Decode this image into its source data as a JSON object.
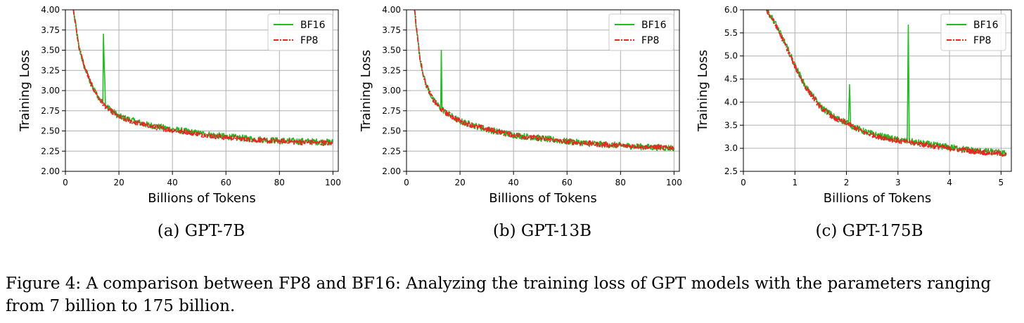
{
  "figure_caption": "Figure 4: A comparison between FP8 and BF16: Analyzing the training loss of GPT models with the parameters ranging from 7 billion to 175 billion.",
  "legend": [
    "BF16",
    "FP8"
  ],
  "colors": {
    "BF16": "#22bb22",
    "FP8": "#ee2222",
    "grid": "#b0b0b0"
  },
  "chart_data": [
    {
      "type": "line",
      "caption": "(a) GPT-7B",
      "xlabel": "Billions of Tokens",
      "ylabel": "Training Loss",
      "xlim": [
        0,
        102
      ],
      "ylim": [
        2.0,
        4.0
      ],
      "xticks": [
        0,
        20,
        40,
        60,
        80,
        100
      ],
      "yticks": [
        2.0,
        2.25,
        2.5,
        2.75,
        3.0,
        3.25,
        3.5,
        3.75,
        4.0
      ],
      "ytick_labels": [
        "2.00",
        "2.25",
        "2.50",
        "2.75",
        "3.00",
        "3.25",
        "3.50",
        "3.75",
        "4.00"
      ],
      "grid": true,
      "legend_position": "top-right",
      "series": [
        {
          "name": "BF16",
          "style": "solid",
          "x": [
            3,
            5,
            7,
            10,
            13,
            14,
            14.2,
            15,
            20,
            30,
            40,
            50,
            60,
            70,
            80,
            90,
            100
          ],
          "y": [
            4.0,
            3.55,
            3.3,
            3.05,
            2.88,
            2.85,
            3.7,
            2.82,
            2.68,
            2.58,
            2.52,
            2.47,
            2.43,
            2.4,
            2.38,
            2.37,
            2.36
          ]
        },
        {
          "name": "FP8",
          "style": "dashdot",
          "x": [
            3,
            5,
            7,
            10,
            13,
            15,
            20,
            30,
            40,
            50,
            60,
            70,
            80,
            90,
            100
          ],
          "y": [
            4.0,
            3.55,
            3.3,
            3.05,
            2.88,
            2.8,
            2.67,
            2.57,
            2.51,
            2.46,
            2.42,
            2.39,
            2.37,
            2.36,
            2.35
          ]
        }
      ]
    },
    {
      "type": "line",
      "caption": "(b) GPT-13B",
      "xlabel": "Billions of Tokens",
      "ylabel": "Training Loss",
      "xlim": [
        0,
        102
      ],
      "ylim": [
        2.0,
        4.0
      ],
      "xticks": [
        0,
        20,
        40,
        60,
        80,
        100
      ],
      "yticks": [
        2.0,
        2.25,
        2.5,
        2.75,
        3.0,
        3.25,
        3.5,
        3.75,
        4.0
      ],
      "ytick_labels": [
        "2.00",
        "2.25",
        "2.50",
        "2.75",
        "3.00",
        "3.25",
        "3.50",
        "3.75",
        "4.00"
      ],
      "grid": true,
      "legend_position": "top-right",
      "series": [
        {
          "name": "BF16",
          "style": "solid",
          "x": [
            3,
            5,
            7,
            10,
            12.8,
            13,
            13.3,
            15,
            20,
            30,
            40,
            50,
            60,
            70,
            80,
            90,
            100
          ],
          "y": [
            4.0,
            3.4,
            3.1,
            2.88,
            2.78,
            3.5,
            2.77,
            2.72,
            2.62,
            2.52,
            2.45,
            2.41,
            2.37,
            2.34,
            2.32,
            2.3,
            2.29
          ]
        },
        {
          "name": "FP8",
          "style": "dashdot",
          "x": [
            3,
            5,
            7,
            10,
            13,
            15,
            20,
            30,
            40,
            50,
            60,
            70,
            80,
            90,
            100
          ],
          "y": [
            4.0,
            3.4,
            3.1,
            2.88,
            2.77,
            2.72,
            2.62,
            2.52,
            2.45,
            2.41,
            2.37,
            2.34,
            2.32,
            2.3,
            2.29
          ]
        }
      ]
    },
    {
      "type": "line",
      "caption": "(c) GPT-175B",
      "xlabel": "Billions of Tokens",
      "ylabel": "Training Loss",
      "xlim": [
        0,
        5.2
      ],
      "ylim": [
        2.5,
        6.0
      ],
      "xticks": [
        0,
        1,
        2,
        3,
        4,
        5
      ],
      "yticks": [
        2.5,
        3.0,
        3.5,
        4.0,
        4.5,
        5.0,
        5.5,
        6.0
      ],
      "ytick_labels": [
        "2.5",
        "3.0",
        "3.5",
        "4.0",
        "4.5",
        "5.0",
        "5.5",
        "6.0"
      ],
      "grid": true,
      "legend_position": "top-right",
      "series": [
        {
          "name": "BF16",
          "style": "solid",
          "x": [
            0.45,
            0.6,
            0.8,
            1.0,
            1.2,
            1.5,
            1.8,
            2.04,
            2.06,
            2.08,
            2.3,
            2.6,
            3.0,
            3.18,
            3.2,
            3.22,
            3.5,
            4.0,
            4.5,
            5.0,
            5.1
          ],
          "y": [
            6.0,
            5.75,
            5.3,
            4.8,
            4.35,
            3.9,
            3.65,
            3.55,
            4.38,
            3.5,
            3.38,
            3.28,
            3.18,
            3.15,
            5.67,
            3.15,
            3.1,
            3.02,
            2.95,
            2.9,
            2.88
          ]
        },
        {
          "name": "FP8",
          "style": "dashdot",
          "x": [
            0.45,
            0.6,
            0.8,
            1.0,
            1.2,
            1.5,
            1.8,
            2.1,
            2.3,
            2.6,
            3.0,
            3.5,
            4.0,
            4.5,
            5.0,
            5.1
          ],
          "y": [
            6.0,
            5.72,
            5.28,
            4.78,
            4.33,
            3.88,
            3.63,
            3.5,
            3.36,
            3.26,
            3.16,
            3.08,
            3.0,
            2.93,
            2.88,
            2.86
          ]
        }
      ]
    }
  ]
}
